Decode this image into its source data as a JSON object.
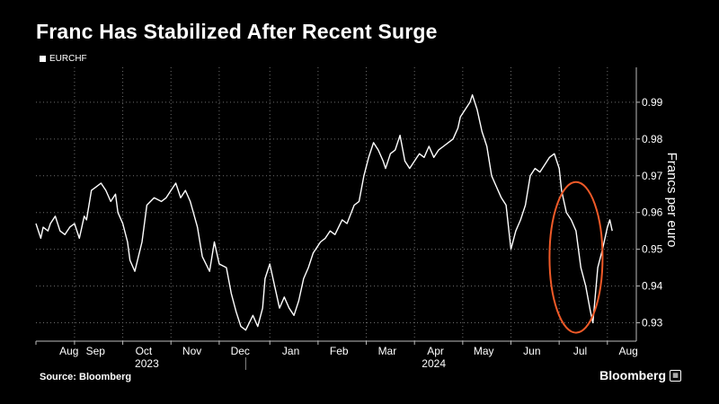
{
  "title": "Franc Has Stabilized After Recent Surge",
  "source": "Source: Bloomberg",
  "brand": "Bloomberg",
  "brand_badge_icon": "bloomberg-terminal-icon",
  "colors": {
    "background": "#000000",
    "line": "#ffffff",
    "grid": "#6e6e6e",
    "highlight": "#f05a28"
  },
  "chart_data": {
    "type": "line",
    "title": "Franc Has Stabilized After Recent Surge",
    "ylabel": "Francs per euro",
    "xlabel": "",
    "ylim": [
      0.925,
      0.9995
    ],
    "yticks": [
      0.93,
      0.94,
      0.95,
      0.96,
      0.97,
      0.98,
      0.99
    ],
    "ytick_labels": [
      "0.93",
      "0.94",
      "0.95",
      "0.96",
      "0.97",
      "0.98",
      "0.99"
    ],
    "legend": "top-left",
    "x_domain": [
      0,
      12.45
    ],
    "month_ticks": [
      {
        "label": "Aug",
        "start": 0,
        "mid": 0.35
      },
      {
        "label": "Sep",
        "start": 0.8,
        "mid": 0.9
      },
      {
        "label": "Oct",
        "start": 1.8,
        "mid": 1.9
      },
      {
        "label": "Nov",
        "start": 2.8,
        "mid": 2.9
      },
      {
        "label": "Dec",
        "start": 3.8,
        "mid": 3.9
      },
      {
        "label": "Jan",
        "start": 4.85,
        "mid": 4.95
      },
      {
        "label": "Feb",
        "start": 5.85,
        "mid": 5.95
      },
      {
        "label": "Mar",
        "start": 6.85,
        "mid": 6.95
      },
      {
        "label": "Apr",
        "start": 7.85,
        "mid": 7.95
      },
      {
        "label": "May",
        "start": 8.85,
        "mid": 8.95
      },
      {
        "label": "Jun",
        "start": 9.85,
        "mid": 9.95
      },
      {
        "label": "Jul",
        "start": 10.85,
        "mid": 10.95
      },
      {
        "label": "Aug",
        "start": 11.85,
        "mid": 11.95
      }
    ],
    "year_labels": [
      {
        "label": "2023",
        "mid": 2.3
      },
      {
        "label": "2024",
        "mid": 8.25
      }
    ],
    "year_divider": 4.35,
    "highlight": {
      "shape": "ellipse",
      "cx": 11.2,
      "cy": 0.9478,
      "rx": 0.55,
      "ry": 0.0205
    },
    "series": [
      {
        "name": "EURCHF",
        "x": [
          0,
          0.1,
          0.15,
          0.25,
          0.3,
          0.4,
          0.5,
          0.6,
          0.7,
          0.8,
          0.9,
          1.0,
          1.05,
          1.15,
          1.25,
          1.35,
          1.45,
          1.55,
          1.65,
          1.7,
          1.8,
          1.9,
          1.95,
          2.05,
          2.2,
          2.3,
          2.45,
          2.6,
          2.7,
          2.8,
          2.9,
          3.0,
          3.1,
          3.2,
          3.35,
          3.45,
          3.6,
          3.7,
          3.8,
          3.95,
          4.05,
          4.15,
          4.25,
          4.35,
          4.5,
          4.6,
          4.7,
          4.75,
          4.85,
          4.95,
          5.05,
          5.15,
          5.25,
          5.35,
          5.45,
          5.55,
          5.65,
          5.75,
          5.9,
          6.0,
          6.1,
          6.2,
          6.35,
          6.45,
          6.6,
          6.7,
          6.8,
          6.9,
          7.0,
          7.1,
          7.2,
          7.25,
          7.35,
          7.45,
          7.55,
          7.65,
          7.75,
          7.85,
          7.95,
          8.05,
          8.15,
          8.25,
          8.35,
          8.45,
          8.55,
          8.65,
          8.75,
          8.8,
          8.9,
          9.0,
          9.05,
          9.15,
          9.25,
          9.35,
          9.45,
          9.55,
          9.65,
          9.75,
          9.85,
          9.95,
          10.05,
          10.15,
          10.25,
          10.35,
          10.45,
          10.55,
          10.65,
          10.75,
          10.85,
          10.9,
          11.0,
          11.1,
          11.2,
          11.3,
          11.4,
          11.5,
          11.55,
          11.65,
          11.75,
          11.85,
          11.9,
          11.95
        ],
        "values": [
          0.957,
          0.953,
          0.956,
          0.955,
          0.957,
          0.959,
          0.955,
          0.954,
          0.956,
          0.957,
          0.953,
          0.959,
          0.958,
          0.966,
          0.967,
          0.968,
          0.966,
          0.963,
          0.965,
          0.96,
          0.957,
          0.952,
          0.947,
          0.944,
          0.952,
          0.962,
          0.964,
          0.963,
          0.964,
          0.966,
          0.968,
          0.964,
          0.966,
          0.963,
          0.956,
          0.948,
          0.944,
          0.952,
          0.946,
          0.945,
          0.938,
          0.933,
          0.929,
          0.928,
          0.932,
          0.929,
          0.934,
          0.942,
          0.946,
          0.94,
          0.934,
          0.937,
          0.934,
          0.932,
          0.936,
          0.942,
          0.945,
          0.949,
          0.952,
          0.953,
          0.955,
          0.954,
          0.958,
          0.957,
          0.962,
          0.963,
          0.97,
          0.975,
          0.979,
          0.977,
          0.974,
          0.972,
          0.976,
          0.977,
          0.981,
          0.974,
          0.972,
          0.974,
          0.976,
          0.975,
          0.978,
          0.975,
          0.977,
          0.978,
          0.979,
          0.98,
          0.983,
          0.986,
          0.988,
          0.99,
          0.992,
          0.988,
          0.982,
          0.978,
          0.97,
          0.967,
          0.964,
          0.962,
          0.95,
          0.955,
          0.958,
          0.962,
          0.97,
          0.972,
          0.971,
          0.973,
          0.975,
          0.976,
          0.972,
          0.966,
          0.96,
          0.958,
          0.955,
          0.945,
          0.94,
          0.933,
          0.93,
          0.945,
          0.95,
          0.956,
          0.958,
          0.955
        ]
      }
    ]
  }
}
